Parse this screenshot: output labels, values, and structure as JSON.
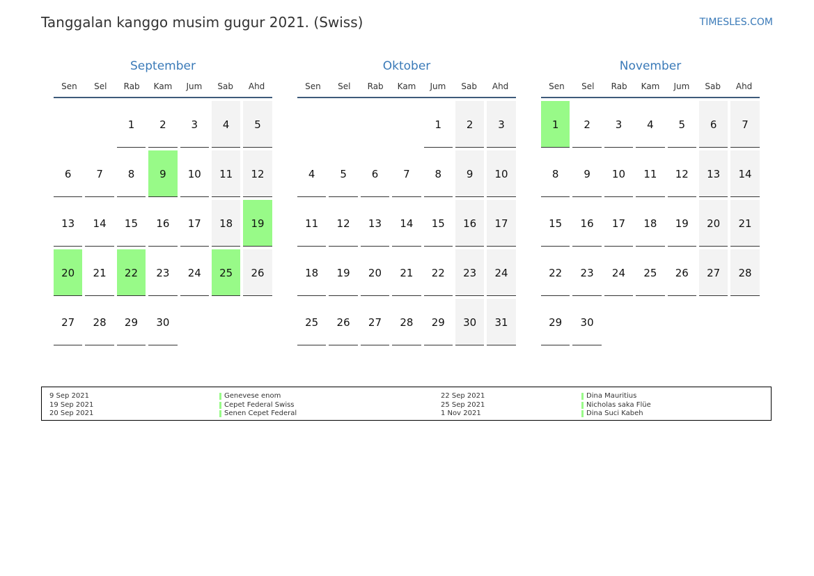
{
  "header": {
    "title": "Tanggalan kanggo musim gugur 2021. (Swiss)",
    "brand": "TIMESLES.COM"
  },
  "weekdays": [
    "Sen",
    "Sel",
    "Rab",
    "Kam",
    "Jum",
    "Sab",
    "Ahd"
  ],
  "colors": {
    "holiday": "#98fa88",
    "weekend": "#f3f3f3",
    "accent": "#3a7ab8"
  },
  "months": [
    {
      "name": "September",
      "offset": 2,
      "days": 30,
      "holidays": [
        9,
        19,
        20,
        22,
        25
      ]
    },
    {
      "name": "Oktober",
      "offset": 4,
      "days": 31,
      "holidays": []
    },
    {
      "name": "November",
      "offset": 0,
      "days": 30,
      "holidays": [
        1
      ]
    }
  ],
  "legend": [
    {
      "date": "9 Sep 2021",
      "name": "Genevese enom"
    },
    {
      "date": "19 Sep 2021",
      "name": "Cepet Federal Swiss"
    },
    {
      "date": "20 Sep 2021",
      "name": "Senen Cepet Federal"
    },
    {
      "date": "22 Sep 2021",
      "name": "Dina Mauritius"
    },
    {
      "date": "25 Sep 2021",
      "name": "Nicholas saka Flüe"
    },
    {
      "date": "1 Nov 2021",
      "name": "Dina Suci Kabeh"
    }
  ]
}
